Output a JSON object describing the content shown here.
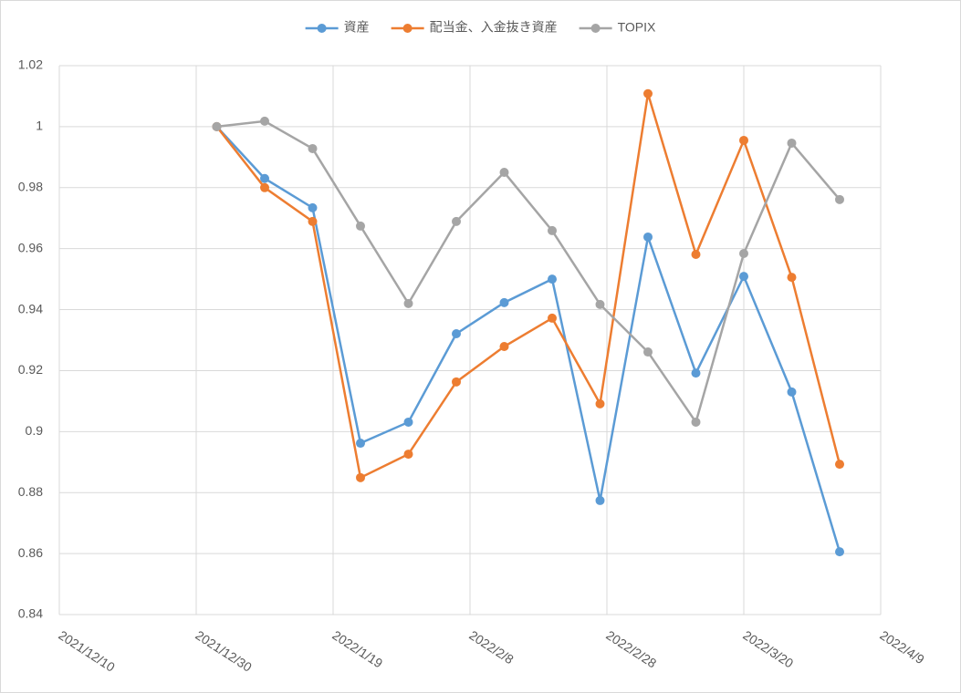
{
  "chart_data": {
    "type": "line",
    "x": [
      "2022/1/2",
      "2022/1/9",
      "2022/1/16",
      "2022/1/23",
      "2022/1/30",
      "2022/2/6",
      "2022/2/13",
      "2022/2/20",
      "2022/2/27",
      "2022/3/6",
      "2022/3/13",
      "2022/3/20",
      "2022/3/27",
      "2022/4/3"
    ],
    "series": [
      {
        "name": "資産",
        "color": "#5b9bd5",
        "values": [
          1.0,
          0.983,
          0.9734,
          0.8962,
          0.9031,
          0.9321,
          0.9423,
          0.95,
          0.8774,
          0.9638,
          0.9192,
          0.9509,
          0.913,
          0.8606
        ]
      },
      {
        "name": "配当金、入金抜き資産",
        "color": "#ed7d31",
        "values": [
          1.0,
          0.98,
          0.9689,
          0.8849,
          0.8926,
          0.9163,
          0.9279,
          0.9372,
          0.9091,
          1.0108,
          0.9581,
          0.9955,
          0.9506,
          0.8893
        ]
      },
      {
        "name": "TOPIX",
        "color": "#a5a5a5",
        "values": [
          1.0,
          1.0018,
          0.9928,
          0.9674,
          0.942,
          0.9689,
          0.985,
          0.9659,
          0.9417,
          0.9261,
          0.9031,
          0.9584,
          0.9946,
          0.9761
        ]
      }
    ],
    "xlim": [
      "2021/12/10",
      "2022/4/9"
    ],
    "xticks": [
      "2021/12/10",
      "2021/12/30",
      "2022/1/19",
      "2022/2/8",
      "2022/2/28",
      "2022/3/20",
      "2022/4/9"
    ],
    "ylim": [
      0.84,
      1.02
    ],
    "yticks": [
      0.84,
      0.86,
      0.88,
      0.9,
      0.92,
      0.94,
      0.96,
      0.98,
      1,
      1.02
    ],
    "grid": true,
    "legend": "top"
  }
}
